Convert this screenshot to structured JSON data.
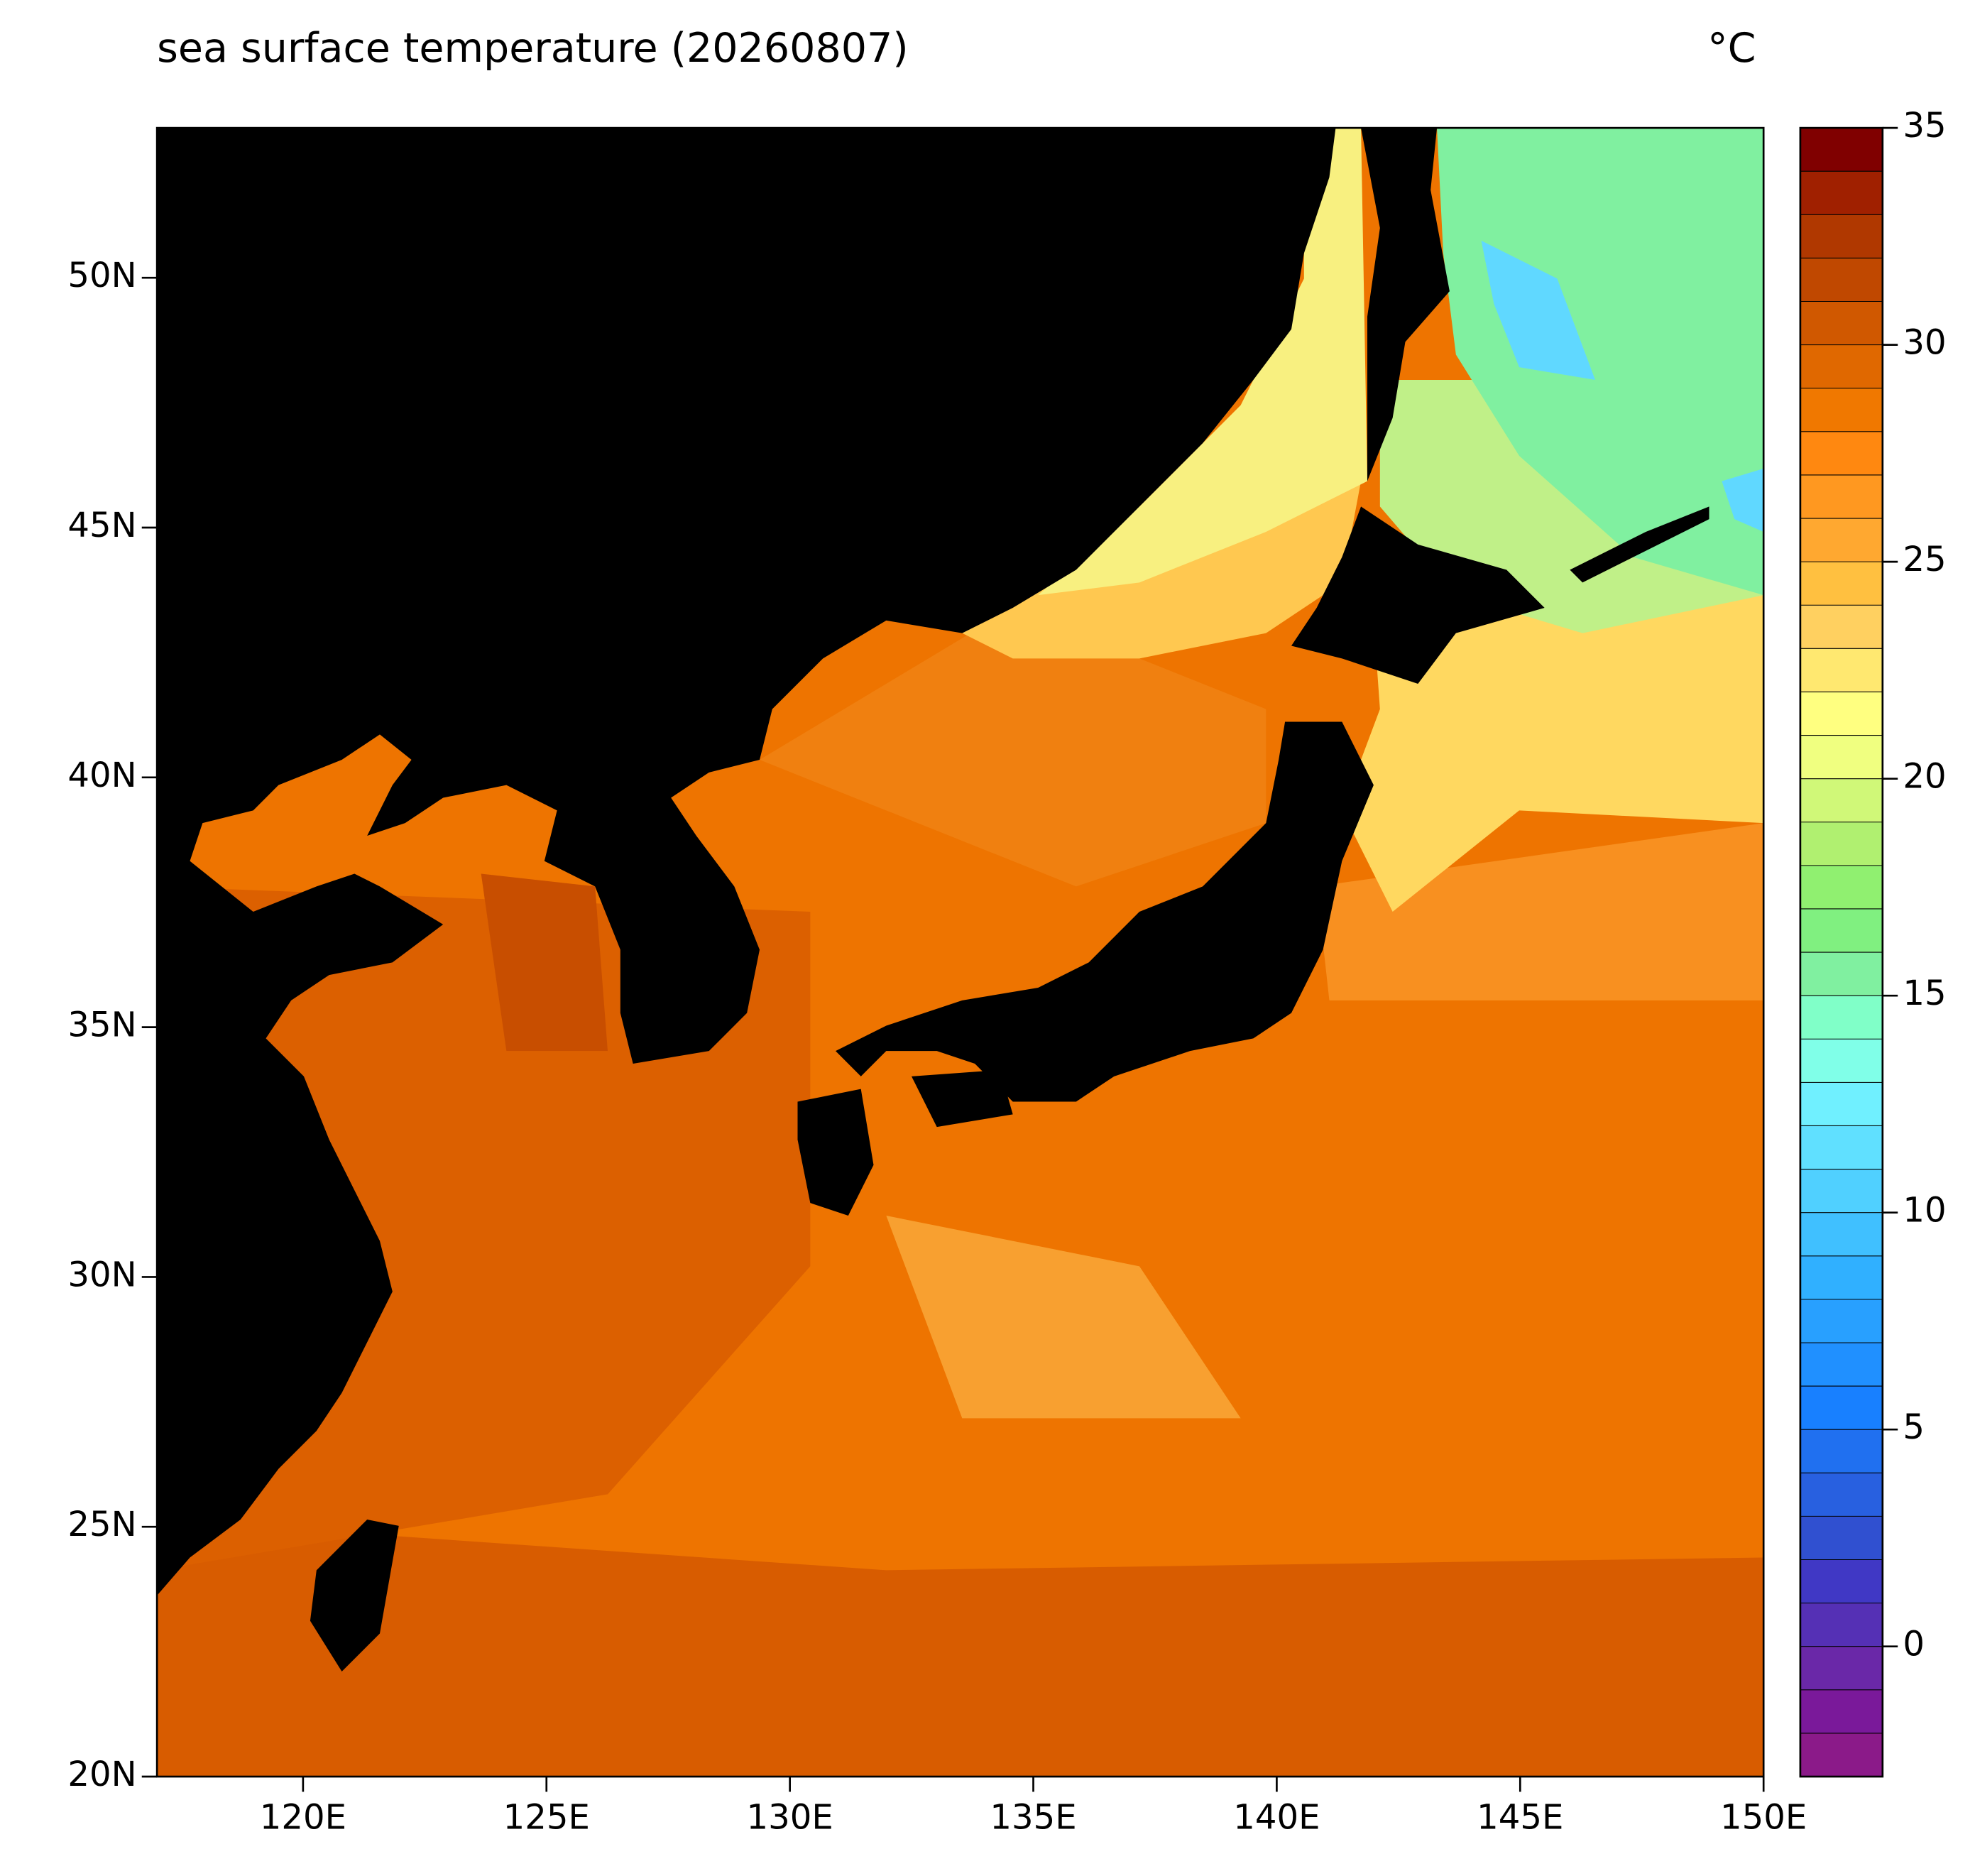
{
  "chart_data": {
    "type": "map",
    "title": "sea surface temperature (20260807)",
    "unit": "°C",
    "xlim": [
      117,
      150
    ],
    "ylim": [
      20,
      53
    ],
    "xticks": [
      {
        "value": 120,
        "label": "120E"
      },
      {
        "value": 125,
        "label": "125E"
      },
      {
        "value": 130,
        "label": "130E"
      },
      {
        "value": 135,
        "label": "135E"
      },
      {
        "value": 140,
        "label": "140E"
      },
      {
        "value": 145,
        "label": "145E"
      },
      {
        "value": 150,
        "label": "150E"
      }
    ],
    "yticks": [
      {
        "value": 20,
        "label": "20N"
      },
      {
        "value": 25,
        "label": "25N"
      },
      {
        "value": 30,
        "label": "30N"
      },
      {
        "value": 35,
        "label": "35N"
      },
      {
        "value": 40,
        "label": "40N"
      },
      {
        "value": 45,
        "label": "45N"
      },
      {
        "value": 50,
        "label": "50N"
      }
    ],
    "colorbar": {
      "levels": [
        -3,
        -2,
        -1,
        0,
        1,
        2,
        3,
        4,
        5,
        6,
        7,
        8,
        9,
        10,
        11,
        12,
        13,
        14,
        15,
        16,
        17,
        18,
        19,
        20,
        21,
        22,
        23,
        24,
        25,
        26,
        27,
        28,
        29,
        30,
        31,
        32,
        33,
        34,
        35
      ],
      "colors": [
        "#8b1a89",
        "#7a199a",
        "#6a28a8",
        "#5530b5",
        "#4038c5",
        "#3050d0",
        "#2860e0",
        "#2070f0",
        "#1880ff",
        "#2090ff",
        "#28a0ff",
        "#30b0ff",
        "#40c0ff",
        "#50d0ff",
        "#60e0ff",
        "#70f0ff",
        "#80ffe8",
        "#80ffc8",
        "#80f0a0",
        "#80f080",
        "#90f070",
        "#b0f070",
        "#d0f878",
        "#f0ff80",
        "#ffff80",
        "#ffe870",
        "#ffd060",
        "#ffc040",
        "#ffa830",
        "#ff9820",
        "#ff8810",
        "#f07800",
        "#e06800",
        "#d05800",
        "#c04800",
        "#b03800",
        "#a02000",
        "#800000"
      ],
      "ticks": [
        0,
        5,
        10,
        15,
        20,
        25,
        30,
        35
      ]
    }
  }
}
